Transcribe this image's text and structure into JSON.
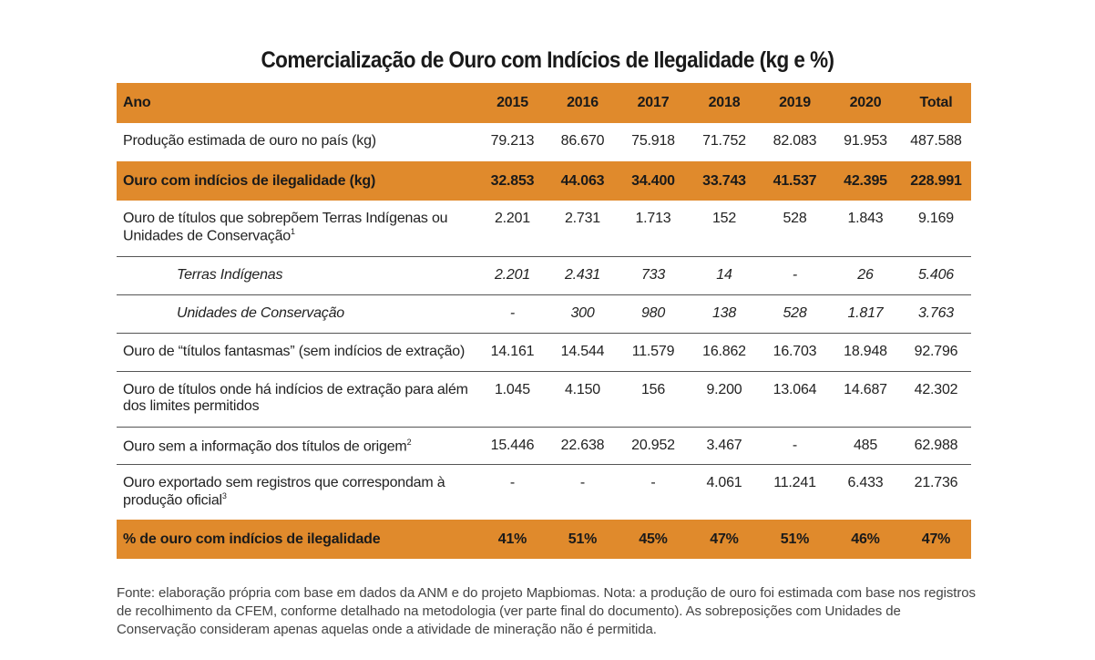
{
  "title": "Comercialização de Ouro com Indícios de Ilegalidade (kg e %)",
  "header": {
    "label": "Ano",
    "years": [
      "2015",
      "2016",
      "2017",
      "2018",
      "2019",
      "2020"
    ],
    "total": "Total"
  },
  "rows": [
    {
      "label": "Produção estimada de ouro no país (kg)",
      "values": [
        "79.213",
        "86.670",
        "75.918",
        "71.752",
        "82.083",
        "91.953"
      ],
      "total": "487.588"
    },
    {
      "label": "Ouro com indícios de ilegalidade (kg)",
      "values": [
        "32.853",
        "44.063",
        "34.400",
        "33.743",
        "41.537",
        "42.395"
      ],
      "total": "228.991"
    },
    {
      "label": "Ouro de títulos que sobrepõem Terras Indígenas ou Unidades de Conservação",
      "sup": "1",
      "values": [
        "2.201",
        "2.731",
        "1.713",
        "152",
        "528",
        "1.843"
      ],
      "total": "9.169"
    },
    {
      "label": "Terras Indígenas",
      "values": [
        "2.201",
        "2.431",
        "733",
        "14",
        "-",
        "26"
      ],
      "total": "5.406"
    },
    {
      "label": "Unidades de Conservação",
      "values": [
        "-",
        "300",
        "980",
        "138",
        "528",
        "1.817"
      ],
      "total": "3.763"
    },
    {
      "label": "Ouro de “títulos fantasmas” (sem indícios de extração)",
      "values": [
        "14.161",
        "14.544",
        "11.579",
        "16.862",
        "16.703",
        "18.948"
      ],
      "total": "92.796"
    },
    {
      "label": "Ouro de títulos onde há indícios de extração para além dos limites permitidos",
      "values": [
        "1.045",
        "4.150",
        "156",
        "9.200",
        "13.064",
        "14.687"
      ],
      "total": "42.302"
    },
    {
      "label": "Ouro sem a informação dos títulos de origem",
      "sup": "2",
      "values": [
        "15.446",
        "22.638",
        "20.952",
        "3.467",
        "-",
        "485"
      ],
      "total": "62.988"
    },
    {
      "label": "Ouro exportado sem registros que correspondam à produção oficial",
      "sup": "3",
      "values": [
        "-",
        "-",
        "-",
        "4.061",
        "11.241",
        "6.433"
      ],
      "total": "21.736"
    },
    {
      "label": "% de ouro com indícios de ilegalidade",
      "values": [
        "41%",
        "51%",
        "45%",
        "47%",
        "51%",
        "46%"
      ],
      "total": "47%"
    }
  ],
  "note": "Fonte: elaboração própria com base em dados da ANM e do projeto Mapbiomas. Nota: a produção de ouro foi estimada com base nos registros de recolhimento da CFEM, conforme detalhado na metodologia (ver parte final do documento). As sobreposições com Unidades de Conservação consideram apenas aquelas onde a atividade de mineração não é permitida.",
  "colors": {
    "highlight": "#e08a2c",
    "rule": "#555555"
  }
}
